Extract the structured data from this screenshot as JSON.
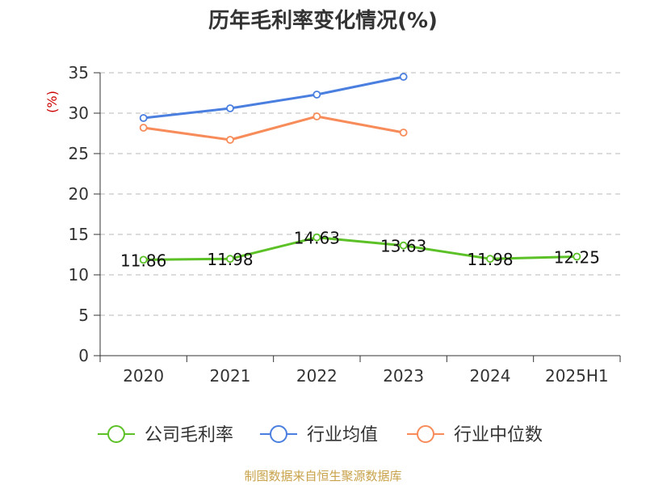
{
  "chart_data": {
    "type": "line",
    "title": "历年毛利率变化情况(%)",
    "ylabel": "(%)",
    "xlabel": "",
    "categories": [
      "2020",
      "2021",
      "2022",
      "2023",
      "2024",
      "2025H1"
    ],
    "ylim": [
      0,
      35
    ],
    "yticks": [
      0,
      5,
      10,
      15,
      20,
      25,
      30,
      35
    ],
    "grid": true,
    "legend_position": "bottom",
    "series": [
      {
        "name": "公司毛利率",
        "color": "#5cc127",
        "values": [
          11.86,
          11.98,
          14.63,
          13.63,
          11.98,
          12.25
        ],
        "labels": [
          "11.86",
          "11.98",
          "14.63",
          "13.63",
          "11.98",
          "12.25"
        ]
      },
      {
        "name": "行业均值",
        "color": "#4a7fe0",
        "values": [
          29.4,
          30.6,
          32.3,
          34.5,
          null,
          null
        ]
      },
      {
        "name": "行业中位数",
        "color": "#f78c5a",
        "values": [
          28.2,
          26.7,
          29.6,
          27.6,
          null,
          null
        ]
      }
    ],
    "source": "制图数据来自恒生聚源数据库"
  }
}
